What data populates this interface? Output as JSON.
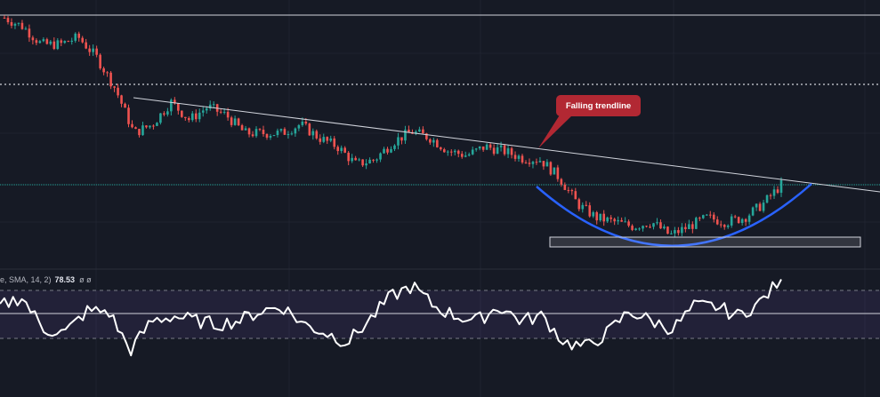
{
  "chart_data": {
    "type": "candlestick",
    "title": "",
    "grid": true,
    "colors": {
      "up": "#26a69a",
      "down": "#ef5350",
      "background": "#161a25",
      "rsi_line": "#ffffff",
      "rsi_band": "#7e57c2",
      "arc": "#2962ff",
      "callout": "#b22833",
      "level_green": "#26a69a"
    },
    "price_path": [
      280,
      270,
      250,
      250,
      258,
      235,
      200,
      150,
      160,
      185,
      165,
      180,
      170,
      150,
      150,
      150,
      160,
      145,
      135,
      115,
      120,
      140,
      152,
      145,
      130,
      125,
      135,
      130,
      122,
      120,
      100,
      70,
      55,
      50,
      45,
      50,
      35,
      45,
      55,
      50,
      55,
      70,
      92
    ],
    "annotations": {
      "callout_text": "Falling trendline",
      "shapes": [
        "horizontal-line-solid",
        "horizontal-line-dotted",
        "horizontal-line-green",
        "falling-trendline",
        "rounding-bottom-arc",
        "support-rectangle"
      ]
    },
    "rsi": {
      "legend_prefix": "e, SMA, 14, 2)",
      "value": "78.53",
      "extra_values": [
        "ø",
        "ø"
      ],
      "upper_band": 70,
      "lower_band": 30,
      "middle": 50,
      "values": [
        56,
        64,
        37,
        34,
        52,
        52,
        19,
        44,
        48,
        44,
        41,
        44,
        52,
        56,
        41,
        34,
        26,
        44,
        64,
        73,
        56,
        48,
        44,
        56,
        44,
        48,
        26,
        22,
        34,
        52,
        44,
        37,
        56,
        56,
        48,
        59,
        78.53
      ]
    }
  }
}
